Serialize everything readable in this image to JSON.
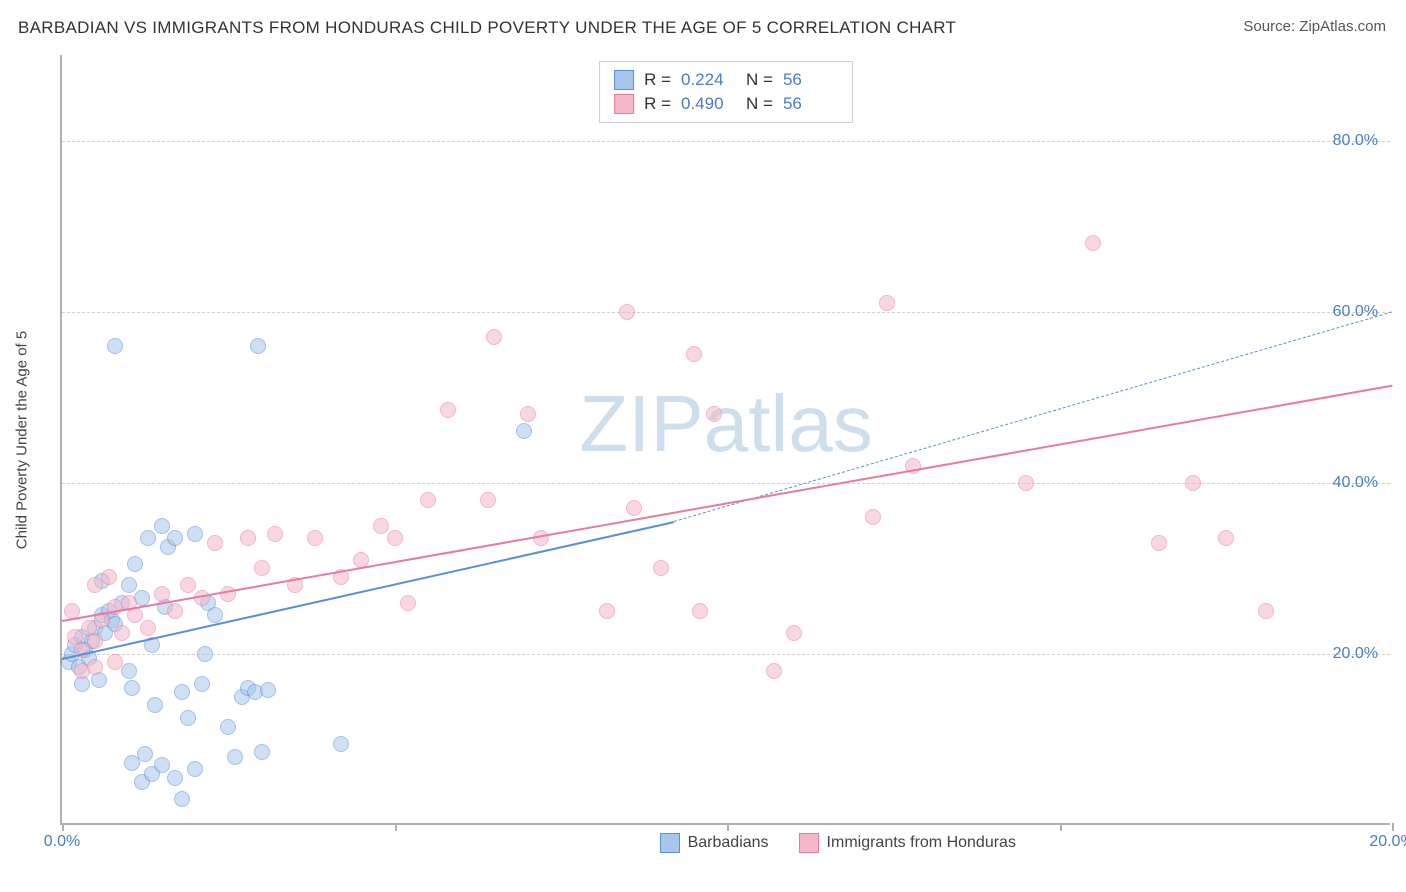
{
  "title": "BARBADIAN VS IMMIGRANTS FROM HONDURAS CHILD POVERTY UNDER THE AGE OF 5 CORRELATION CHART",
  "source_label": "Source: ",
  "source_value": "ZipAtlas.com",
  "watermark": "ZIPatlas",
  "ylabel": "Child Poverty Under the Age of 5",
  "chart": {
    "type": "scatter",
    "xlim": [
      0,
      20
    ],
    "ylim": [
      0,
      90
    ],
    "x_ticks": [
      0,
      5,
      10,
      15,
      20
    ],
    "x_tick_labels": [
      "0.0%",
      "",
      "",
      "",
      "20.0%"
    ],
    "y_gridlines": [
      20,
      40,
      60,
      80
    ],
    "y_tick_labels": [
      "20.0%",
      "40.0%",
      "60.0%",
      "80.0%"
    ],
    "background_color": "#ffffff",
    "grid_color": "#d0d0d0",
    "axis_color": "#b0b0b0",
    "tick_label_color": "#4a7bd0",
    "label_fontsize": 15,
    "tick_fontsize": 16,
    "title_fontsize": 17,
    "marker_radius": 8,
    "marker_opacity": 0.55
  },
  "series": [
    {
      "name": "Barbadians",
      "fill": "#a8c5ec",
      "stroke": "#5b8fd6",
      "R": "0.224",
      "N": "56",
      "trend": {
        "x1": 0,
        "y1": 19.5,
        "x2": 9.2,
        "y2": 35.5,
        "solid_until_x": 9.2,
        "dash_to_x": 20,
        "dash_to_y": 60,
        "width": 2.5
      },
      "points": [
        [
          0.1,
          19
        ],
        [
          0.15,
          20
        ],
        [
          0.2,
          21
        ],
        [
          0.25,
          18.5
        ],
        [
          0.3,
          22
        ],
        [
          0.35,
          20.5
        ],
        [
          0.4,
          19.5
        ],
        [
          0.45,
          21.5
        ],
        [
          0.5,
          23
        ],
        [
          0.55,
          17
        ],
        [
          0.6,
          24.5
        ],
        [
          0.65,
          22.5
        ],
        [
          0.7,
          25
        ],
        [
          0.75,
          24
        ],
        [
          0.8,
          23.5
        ],
        [
          0.9,
          26
        ],
        [
          1.0,
          18
        ],
        [
          1.05,
          16
        ],
        [
          1.1,
          30.5
        ],
        [
          1.2,
          26.5
        ],
        [
          1.3,
          33.5
        ],
        [
          1.35,
          21
        ],
        [
          1.4,
          14
        ],
        [
          1.5,
          35
        ],
        [
          1.55,
          25.5
        ],
        [
          1.6,
          32.5
        ],
        [
          1.7,
          33.5
        ],
        [
          1.8,
          15.5
        ],
        [
          1.9,
          12.5
        ],
        [
          2.0,
          34
        ],
        [
          2.1,
          16.5
        ],
        [
          2.15,
          20
        ],
        [
          2.2,
          26
        ],
        [
          2.3,
          24.5
        ],
        [
          0.8,
          56
        ],
        [
          2.5,
          11.5
        ],
        [
          2.6,
          8
        ],
        [
          2.7,
          15
        ],
        [
          2.8,
          16
        ],
        [
          2.9,
          15.5
        ],
        [
          3.0,
          8.5
        ],
        [
          3.1,
          15.8
        ],
        [
          1.2,
          5
        ],
        [
          1.35,
          6
        ],
        [
          1.5,
          7
        ],
        [
          1.7,
          5.5
        ],
        [
          1.8,
          3
        ],
        [
          2.0,
          6.5
        ],
        [
          4.2,
          9.5
        ],
        [
          2.95,
          56
        ],
        [
          6.95,
          46
        ],
        [
          1.05,
          7.2
        ],
        [
          1.25,
          8.3
        ],
        [
          1.0,
          28
        ],
        [
          0.6,
          28.5
        ],
        [
          0.3,
          16.5
        ]
      ]
    },
    {
      "name": "Immigrants from Honduras",
      "fill": "#f5b8c8",
      "stroke": "#e87ba0",
      "R": "0.490",
      "N": "56",
      "trend": {
        "x1": 0,
        "y1": 24,
        "x2": 20,
        "y2": 51.5,
        "solid_until_x": 20,
        "width": 2.5
      },
      "points": [
        [
          0.2,
          22
        ],
        [
          0.3,
          20.5
        ],
        [
          0.4,
          23
        ],
        [
          0.5,
          21.5
        ],
        [
          0.6,
          24
        ],
        [
          0.8,
          25.5
        ],
        [
          0.9,
          22.5
        ],
        [
          1.0,
          26
        ],
        [
          1.1,
          24.5
        ],
        [
          1.3,
          23
        ],
        [
          1.5,
          27
        ],
        [
          1.7,
          25
        ],
        [
          1.9,
          28
        ],
        [
          2.1,
          26.5
        ],
        [
          2.3,
          33
        ],
        [
          2.5,
          27
        ],
        [
          2.8,
          33.5
        ],
        [
          3.0,
          30
        ],
        [
          3.2,
          34
        ],
        [
          3.5,
          28
        ],
        [
          4.2,
          29
        ],
        [
          3.8,
          33.5
        ],
        [
          4.5,
          31
        ],
        [
          5.0,
          33.5
        ],
        [
          5.2,
          26
        ],
        [
          5.5,
          38
        ],
        [
          5.8,
          48.5
        ],
        [
          6.5,
          57
        ],
        [
          6.4,
          38
        ],
        [
          7.0,
          48
        ],
        [
          7.2,
          33.5
        ],
        [
          8.5,
          60
        ],
        [
          8.6,
          37
        ],
        [
          8.2,
          25
        ],
        [
          9.0,
          30
        ],
        [
          9.5,
          55
        ],
        [
          9.8,
          48
        ],
        [
          9.6,
          25
        ],
        [
          10.7,
          18
        ],
        [
          12.4,
          61
        ],
        [
          11.0,
          22.5
        ],
        [
          12.2,
          36
        ],
        [
          12.8,
          42
        ],
        [
          14.5,
          40
        ],
        [
          15.5,
          68
        ],
        [
          16.5,
          33
        ],
        [
          17.0,
          40
        ],
        [
          17.5,
          33.5
        ],
        [
          18.1,
          25
        ],
        [
          0.3,
          18
        ],
        [
          0.5,
          18.5
        ],
        [
          0.8,
          19
        ],
        [
          0.15,
          25
        ],
        [
          0.5,
          28
        ],
        [
          0.7,
          29
        ],
        [
          4.8,
          35
        ]
      ]
    }
  ],
  "stats_labels": {
    "R": "R  =",
    "N": "N  ="
  },
  "legend": {
    "items": [
      {
        "label": "Barbadians",
        "series": 0
      },
      {
        "label": "Immigrants from Honduras",
        "series": 1
      }
    ]
  }
}
